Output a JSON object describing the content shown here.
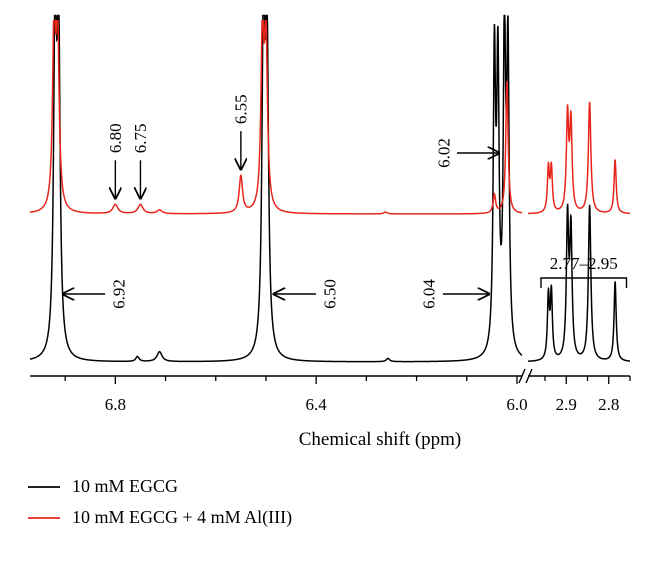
{
  "chart_data": {
    "type": "line",
    "title": "",
    "xlabel": "Chemical shift (ppm)",
    "ylabel": "",
    "x_axis": {
      "direction": "decreasing",
      "broken": true,
      "segments": [
        {
          "xlim": [
            6.97,
            5.99
          ],
          "tick_values": [
            6.8,
            6.4,
            6.0
          ],
          "tick_labels": [
            "6.8",
            "6.4",
            "6.0"
          ]
        },
        {
          "xlim": [
            2.99,
            2.75
          ],
          "tick_values": [
            2.9,
            2.8
          ],
          "tick_labels": [
            "2.9",
            "2.8"
          ]
        }
      ]
    },
    "grid": false,
    "legend_position": "bottom-left",
    "colors": {
      "black": "#000000",
      "red": "#e8251a"
    },
    "series": [
      {
        "name": "10 mM EGCG",
        "color": "#000000",
        "peaks": [
          {
            "ppm": 6.92,
            "intensity": 1.0,
            "width": 0.0035
          },
          {
            "ppm": 6.913,
            "intensity": 0.95,
            "width": 0.0035
          },
          {
            "ppm": 6.756,
            "intensity": 0.015,
            "width": 0.004
          },
          {
            "ppm": 6.712,
            "intensity": 0.03,
            "width": 0.006
          },
          {
            "ppm": 6.505,
            "intensity": 1.0,
            "width": 0.0035
          },
          {
            "ppm": 6.498,
            "intensity": 0.95,
            "width": 0.0035
          },
          {
            "ppm": 6.257,
            "intensity": 0.01,
            "width": 0.004
          },
          {
            "ppm": 6.045,
            "intensity": 0.88,
            "width": 0.0028
          },
          {
            "ppm": 6.038,
            "intensity": 0.84,
            "width": 0.0028
          },
          {
            "ppm": 6.025,
            "intensity": 0.96,
            "width": 0.0028
          },
          {
            "ppm": 6.018,
            "intensity": 0.9,
            "width": 0.0028
          },
          {
            "ppm": 2.942,
            "intensity": 0.19,
            "width": 0.0028
          },
          {
            "ppm": 2.935,
            "intensity": 0.2,
            "width": 0.0028
          },
          {
            "ppm": 2.897,
            "intensity": 0.42,
            "width": 0.0032
          },
          {
            "ppm": 2.889,
            "intensity": 0.38,
            "width": 0.0032
          },
          {
            "ppm": 2.845,
            "intensity": 0.47,
            "width": 0.0035
          },
          {
            "ppm": 2.785,
            "intensity": 0.24,
            "width": 0.003
          }
        ]
      },
      {
        "name": "10 mM EGCG + 4 mM Al(III)",
        "color": "#e8251a",
        "peaks": [
          {
            "ppm": 6.922,
            "intensity": 1.0,
            "width": 0.0035
          },
          {
            "ppm": 6.915,
            "intensity": 0.95,
            "width": 0.0035
          },
          {
            "ppm": 6.8,
            "intensity": 0.05,
            "width": 0.006
          },
          {
            "ppm": 6.75,
            "intensity": 0.05,
            "width": 0.006
          },
          {
            "ppm": 6.712,
            "intensity": 0.02,
            "width": 0.006
          },
          {
            "ppm": 6.55,
            "intensity": 0.2,
            "width": 0.004
          },
          {
            "ppm": 6.507,
            "intensity": 0.95,
            "width": 0.0035
          },
          {
            "ppm": 6.5,
            "intensity": 0.9,
            "width": 0.0035
          },
          {
            "ppm": 6.262,
            "intensity": 0.01,
            "width": 0.004
          },
          {
            "ppm": 6.045,
            "intensity": 0.1,
            "width": 0.003
          },
          {
            "ppm": 6.02,
            "intensity": 0.72,
            "width": 0.0028
          },
          {
            "ppm": 2.942,
            "intensity": 0.24,
            "width": 0.0028
          },
          {
            "ppm": 2.935,
            "intensity": 0.24,
            "width": 0.0028
          },
          {
            "ppm": 2.897,
            "intensity": 0.52,
            "width": 0.0032
          },
          {
            "ppm": 2.889,
            "intensity": 0.48,
            "width": 0.0032
          },
          {
            "ppm": 2.845,
            "intensity": 0.6,
            "width": 0.0035
          },
          {
            "ppm": 2.785,
            "intensity": 0.29,
            "width": 0.003
          }
        ]
      }
    ],
    "annotations": {
      "red": [
        {
          "label": "6.80",
          "ppm": 6.8,
          "arrow": "down"
        },
        {
          "label": "6.75",
          "ppm": 6.75,
          "arrow": "down"
        },
        {
          "label": "6.55",
          "ppm": 6.55,
          "arrow": "down"
        },
        {
          "label": "6.02",
          "ppm": 6.02,
          "arrow": "right"
        }
      ],
      "black": [
        {
          "label": "6.92",
          "ppm": 6.92,
          "arrow": "left"
        },
        {
          "label": "6.50",
          "ppm": 6.5,
          "arrow": "left"
        },
        {
          "label": "6.04",
          "ppm": 6.04,
          "arrow": "right"
        }
      ],
      "bracket": {
        "label": "2.77–2.95",
        "from_ppm": 2.95,
        "to_ppm": 2.77
      }
    }
  }
}
